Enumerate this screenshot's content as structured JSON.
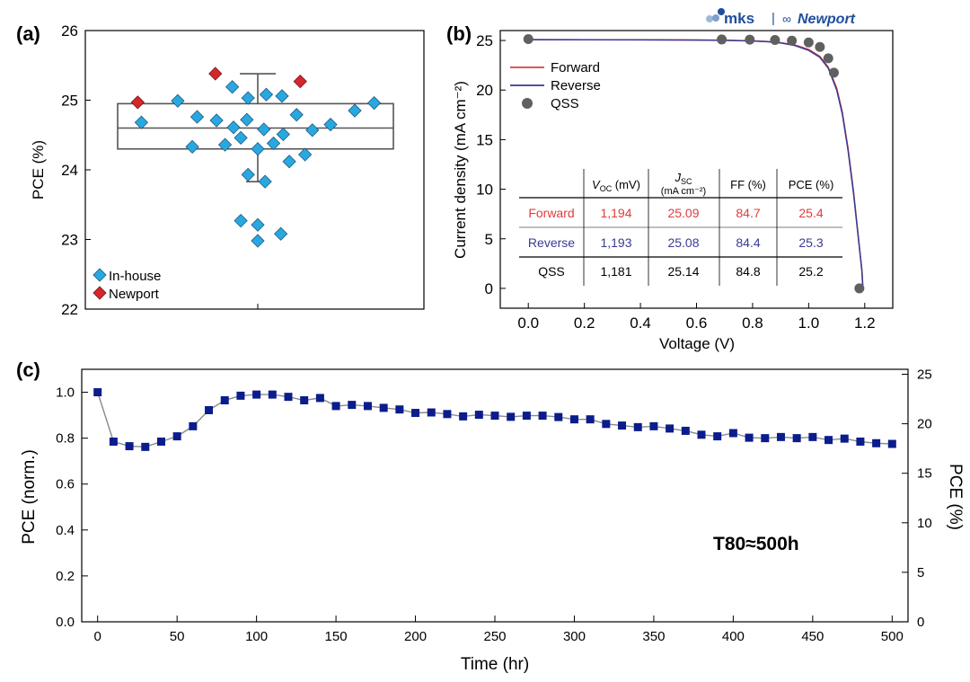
{
  "figure": {
    "logo": {
      "mks": "mks",
      "sep": "|",
      "newport": "Newport"
    }
  },
  "chart_data": [
    {
      "id": "a",
      "panel_label": "(a)",
      "type": "scatter",
      "title": "",
      "xlabel": "",
      "ylabel": "PCE (%)",
      "ylim": [
        22,
        26
      ],
      "yticks": [
        22,
        23,
        24,
        25,
        26
      ],
      "box": {
        "q1": 24.3,
        "median": 24.6,
        "q3": 24.95,
        "whisker_low": 23.83,
        "whisker_high": 25.38
      },
      "legend": {
        "position": "bottom-left",
        "entries": [
          "In-house",
          "Newport"
        ]
      },
      "series": [
        {
          "name": "In-house",
          "color": "#29a8e0",
          "points": [
            [
              -9.6,
              24.68
            ],
            [
              -6.6,
              24.99
            ],
            [
              -5.4,
              24.33
            ],
            [
              -5.0,
              24.76
            ],
            [
              -3.4,
              24.71
            ],
            [
              -2.7,
              24.36
            ],
            [
              -2.1,
              25.19
            ],
            [
              -2.0,
              24.61
            ],
            [
              -1.4,
              23.27
            ],
            [
              -1.4,
              24.46
            ],
            [
              -0.9,
              24.72
            ],
            [
              -0.8,
              25.03
            ],
            [
              -0.8,
              23.93
            ],
            [
              0.0,
              23.21
            ],
            [
              0.0,
              22.98
            ],
            [
              0.0,
              24.3
            ],
            [
              0.5,
              24.58
            ],
            [
              0.7,
              25.08
            ],
            [
              0.6,
              23.83
            ],
            [
              1.3,
              24.38
            ],
            [
              1.9,
              23.08
            ],
            [
              2.1,
              24.51
            ],
            [
              2.0,
              25.06
            ],
            [
              2.6,
              24.12
            ],
            [
              3.2,
              24.79
            ],
            [
              3.9,
              24.22
            ],
            [
              4.5,
              24.57
            ],
            [
              6.0,
              24.65
            ],
            [
              8.0,
              24.85
            ],
            [
              9.6,
              24.96
            ]
          ]
        },
        {
          "name": "Newport",
          "color": "#d6262b",
          "points": [
            [
              -9.9,
              24.97
            ],
            [
              -3.5,
              25.38
            ],
            [
              3.5,
              25.27
            ]
          ]
        }
      ]
    },
    {
      "id": "b",
      "panel_label": "(b)",
      "type": "line",
      "title": "",
      "xlabel": "Voltage (V)",
      "ylabel": "Current density (mA cm⁻²)",
      "xlim": [
        -0.1,
        1.3
      ],
      "ylim": [
        -2,
        26
      ],
      "xticks": [
        0.0,
        0.2,
        0.4,
        0.6,
        0.8,
        1.0,
        1.2
      ],
      "xtick_labels": [
        "0.0",
        "0.2",
        "0.4",
        "0.6",
        "0.8",
        "1.0",
        "1.2"
      ],
      "yticks": [
        0,
        5,
        10,
        15,
        20,
        25
      ],
      "legend": {
        "position": "top-left",
        "entries": [
          "Forward",
          "Reverse",
          "QSS"
        ]
      },
      "series": [
        {
          "name": "Forward",
          "color": "#e03c3c",
          "x": [
            0.0,
            0.2,
            0.4,
            0.6,
            0.7,
            0.8,
            0.85,
            0.9,
            0.95,
            1.0,
            1.04,
            1.07,
            1.1,
            1.12,
            1.14,
            1.16,
            1.18,
            1.19,
            1.194
          ],
          "y": [
            25.09,
            25.08,
            25.07,
            25.05,
            25.02,
            24.96,
            24.9,
            24.78,
            24.55,
            24.1,
            23.4,
            22.3,
            20.2,
            17.8,
            14.2,
            9.8,
            4.5,
            1.8,
            0.0
          ]
        },
        {
          "name": "Reverse",
          "color": "#3a3a96",
          "x": [
            0.0,
            0.2,
            0.4,
            0.6,
            0.7,
            0.8,
            0.85,
            0.9,
            0.95,
            1.0,
            1.04,
            1.07,
            1.1,
            1.12,
            1.14,
            1.16,
            1.18,
            1.19,
            1.193
          ],
          "y": [
            25.08,
            25.07,
            25.06,
            25.04,
            25.01,
            24.95,
            24.88,
            24.75,
            24.5,
            24.0,
            23.3,
            22.2,
            20.0,
            17.6,
            14.0,
            9.6,
            4.4,
            1.7,
            0.0
          ]
        },
        {
          "name": "QSS",
          "color": "#606060",
          "x": [
            0.0,
            0.69,
            0.79,
            0.88,
            0.94,
            1.0,
            1.04,
            1.07,
            1.09,
            1.181
          ],
          "y": [
            25.14,
            25.1,
            25.08,
            25.05,
            24.98,
            24.8,
            24.35,
            23.2,
            21.75,
            0.0
          ]
        }
      ],
      "table": {
        "headers": [
          "",
          "V_OC (mV)",
          "J_SC (mA cm⁻²)",
          "FF (%)",
          "PCE (%)"
        ],
        "rows": [
          {
            "label": "Forward",
            "values": [
              "1,194",
              "25.09",
              "84.7",
              "25.4"
            ],
            "color": "#e03c3c"
          },
          {
            "label": "Reverse",
            "values": [
              "1,193",
              "25.08",
              "84.4",
              "25.3"
            ],
            "color": "#3a3a96"
          },
          {
            "label": "QSS",
            "values": [
              "1,181",
              "25.14",
              "84.8",
              "25.2"
            ],
            "color": "#000000"
          }
        ]
      }
    },
    {
      "id": "c",
      "panel_label": "(c)",
      "type": "line",
      "title": "",
      "xlabel": "Time (hr)",
      "ylabel": "PCE (norm.)",
      "ylabel_right": "PCE (%)",
      "xlim": [
        -10,
        510
      ],
      "ylim": [
        0,
        1.1
      ],
      "ylim_right": [
        0,
        25.5
      ],
      "xticks": [
        0,
        50,
        100,
        150,
        200,
        250,
        300,
        350,
        400,
        450,
        500
      ],
      "yticks": [
        0.0,
        0.2,
        0.4,
        0.6,
        0.8,
        1.0
      ],
      "ytick_labels": [
        "0.0",
        "0.2",
        "0.4",
        "0.6",
        "0.8",
        "1.0"
      ],
      "yticks_right": [
        0,
        5,
        10,
        15,
        20,
        25
      ],
      "annotation": "T80≈500h",
      "series": [
        {
          "name": "PCE (norm.)",
          "color": "#0b1c8c",
          "x": [
            0,
            10,
            20,
            30,
            40,
            50,
            60,
            70,
            80,
            90,
            100,
            110,
            120,
            130,
            140,
            150,
            160,
            170,
            180,
            190,
            200,
            210,
            220,
            230,
            240,
            250,
            260,
            270,
            280,
            290,
            300,
            310,
            320,
            330,
            340,
            350,
            360,
            370,
            380,
            390,
            400,
            410,
            420,
            430,
            440,
            450,
            460,
            470,
            480,
            490,
            500
          ],
          "y": [
            1.0,
            0.785,
            0.765,
            0.762,
            0.785,
            0.808,
            0.852,
            0.922,
            0.965,
            0.985,
            0.99,
            0.99,
            0.98,
            0.965,
            0.975,
            0.94,
            0.945,
            0.94,
            0.932,
            0.925,
            0.91,
            0.912,
            0.905,
            0.895,
            0.902,
            0.898,
            0.893,
            0.898,
            0.898,
            0.892,
            0.882,
            0.882,
            0.862,
            0.855,
            0.848,
            0.852,
            0.842,
            0.832,
            0.815,
            0.808,
            0.822,
            0.802,
            0.8,
            0.805,
            0.8,
            0.805,
            0.792,
            0.798,
            0.785,
            0.778,
            0.775
          ]
        }
      ]
    }
  ]
}
